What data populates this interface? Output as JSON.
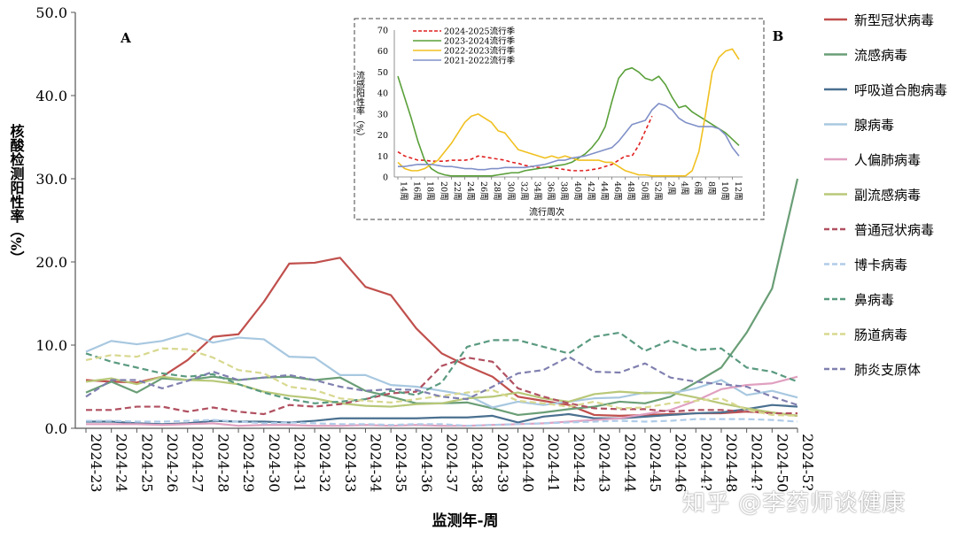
{
  "chart_data": [
    {
      "type": "line",
      "panel_label": "A",
      "xlabel": "监测年-周",
      "ylabel": "核酸检测阳性率（%）",
      "ylim": [
        0,
        50
      ],
      "yticks": [
        "0.0",
        "10.0",
        "20.0",
        "30.0",
        "40.0",
        "50.0"
      ],
      "ytick_values": [
        0,
        10,
        20,
        30,
        40,
        50
      ],
      "grid": false,
      "legend_position": "right",
      "categories": [
        "2024-23",
        "2024-24",
        "2024-25",
        "2024-26",
        "2024-27",
        "2024-28",
        "2024-29",
        "2024-30",
        "2024-31",
        "2024-32",
        "2024-33",
        "2024-34",
        "2024-35",
        "2024-36",
        "2024-37",
        "2024-38",
        "2024-39",
        "2024-40",
        "2024-41",
        "2024-42",
        "2024-43",
        "2024-44",
        "2024-45",
        "2024-46",
        "2024-47",
        "2024-48",
        "2024-49",
        "2024-50",
        "2024-51"
      ],
      "tick_labels": [
        "2024-23",
        "2024-24",
        "2024-25",
        "2024-26",
        "2024-27",
        "2024-28",
        "2024-29",
        "2024-30",
        "2024-31",
        "2024-32",
        "2024-33",
        "2024-34",
        "2024-35",
        "2024-36",
        "2024-37",
        "2024-38",
        "2024-39",
        "2024-40",
        "2024-41",
        "2024-42",
        "2024-43",
        "2024-44",
        "2024-45",
        "2024-46",
        "2024-4?",
        "2024-48",
        "2024-4?",
        "2024-50",
        "2024-5?"
      ],
      "series": [
        {
          "name": "新型冠状病毒",
          "color": "#c0504d",
          "dash": "solid",
          "values": [
            5.8,
            5.6,
            5.5,
            6.2,
            8.2,
            11.0,
            11.3,
            15.2,
            19.8,
            19.9,
            20.5,
            17.0,
            16.0,
            12.0,
            9.0,
            7.5,
            6.2,
            3.8,
            3.3,
            2.8,
            1.6,
            1.5,
            1.6,
            1.7,
            1.8,
            1.8,
            2.0,
            1.9,
            1.5
          ]
        },
        {
          "name": "流感病毒",
          "color": "#6a9e76",
          "dash": "solid",
          "values": [
            4.3,
            5.6,
            4.3,
            6.0,
            5.8,
            6.2,
            5.8,
            6.1,
            6.2,
            5.8,
            6.1,
            4.5,
            3.8,
            3.0,
            3.0,
            3.1,
            2.4,
            1.6,
            1.9,
            2.3,
            2.6,
            3.2,
            3.0,
            3.8,
            5.5,
            7.3,
            11.5,
            16.8,
            30.0
          ]
        },
        {
          "name": "呼吸道合胞病毒",
          "color": "#4a7090",
          "dash": "solid",
          "values": [
            0.8,
            0.8,
            0.6,
            0.5,
            0.6,
            0.9,
            0.8,
            0.8,
            0.7,
            0.9,
            1.2,
            1.2,
            1.2,
            1.2,
            1.3,
            1.3,
            1.5,
            0.7,
            1.4,
            1.7,
            1.2,
            1.2,
            1.4,
            1.6,
            1.8,
            1.9,
            2.3,
            2.8,
            2.6
          ]
        },
        {
          "name": "腺病毒",
          "color": "#a8c8e0",
          "dash": "solid",
          "values": [
            9.2,
            10.5,
            10.1,
            10.5,
            11.4,
            10.3,
            10.9,
            10.7,
            8.6,
            8.5,
            6.4,
            6.4,
            5.2,
            5.0,
            4.5,
            4.0,
            2.5,
            3.2,
            2.8,
            3.2,
            3.6,
            3.7,
            4.3,
            4.2,
            4.8,
            5.8,
            4.0,
            4.5,
            3.7
          ]
        },
        {
          "name": "人偏肺病毒",
          "color": "#e0a0c0",
          "dash": "solid",
          "values": [
            0.5,
            0.5,
            0.5,
            0.4,
            0.5,
            0.6,
            0.3,
            0.4,
            0.4,
            0.3,
            0.3,
            0.4,
            0.3,
            0.4,
            0.3,
            0.3,
            0.4,
            0.5,
            0.6,
            0.8,
            1.0,
            1.2,
            1.7,
            2.2,
            3.3,
            4.7,
            5.2,
            5.4,
            6.2
          ]
        },
        {
          "name": "副流感病毒",
          "color": "#b8c878",
          "dash": "solid",
          "values": [
            5.6,
            6.0,
            5.3,
            6.2,
            5.8,
            5.7,
            5.3,
            4.4,
            3.9,
            3.6,
            3.0,
            2.7,
            2.6,
            2.9,
            3.0,
            3.6,
            3.8,
            4.3,
            3.6,
            3.2,
            4.1,
            4.4,
            4.2,
            4.3,
            3.7,
            3.0,
            2.4,
            1.9,
            1.5
          ]
        },
        {
          "name": "普通冠状病毒",
          "color": "#b05060",
          "dash": "dashed",
          "values": [
            2.2,
            2.2,
            2.6,
            2.6,
            2.0,
            2.5,
            2.0,
            1.7,
            2.8,
            2.6,
            2.9,
            3.5,
            4.2,
            4.4,
            7.5,
            8.5,
            8.0,
            4.8,
            3.8,
            3.0,
            2.4,
            2.3,
            2.3,
            2.0,
            2.2,
            2.2,
            2.0,
            1.8,
            1.8
          ]
        },
        {
          "name": "博卡病毒",
          "color": "#b0cce8",
          "dash": "dashed",
          "values": [
            0.9,
            0.9,
            0.8,
            0.8,
            0.9,
            1.0,
            0.8,
            0.6,
            0.7,
            0.6,
            0.5,
            0.5,
            0.4,
            0.5,
            0.5,
            0.3,
            0.4,
            0.5,
            0.6,
            0.7,
            0.8,
            0.9,
            0.8,
            0.9,
            1.1,
            1.1,
            1.1,
            1.0,
            0.8
          ]
        },
        {
          "name": "鼻病毒",
          "color": "#5a9a80",
          "dash": "dashed",
          "values": [
            9.0,
            8.0,
            7.3,
            6.6,
            6.2,
            6.5,
            5.3,
            4.3,
            3.5,
            3.0,
            3.2,
            3.5,
            4.5,
            4.0,
            5.5,
            9.8,
            10.6,
            10.6,
            9.8,
            9.0,
            11.0,
            11.5,
            9.3,
            10.6,
            9.4,
            9.6,
            7.3,
            6.8,
            5.6
          ]
        },
        {
          "name": "肠道病毒",
          "color": "#d8d890",
          "dash": "dashed",
          "values": [
            8.2,
            8.8,
            8.6,
            9.6,
            9.5,
            8.5,
            7.0,
            6.6,
            5.0,
            4.6,
            3.6,
            3.3,
            3.1,
            3.5,
            3.9,
            4.3,
            4.6,
            3.3,
            3.0,
            2.6,
            3.2,
            2.4,
            2.5,
            3.0,
            3.3,
            3.6,
            2.2,
            1.6,
            1.5
          ]
        },
        {
          "name": "肺炎支原体",
          "color": "#8080b0",
          "dash": "dashed",
          "values": [
            3.8,
            5.8,
            5.8,
            4.8,
            5.7,
            6.8,
            5.8,
            6.1,
            6.4,
            5.8,
            5.0,
            4.5,
            4.7,
            4.6,
            3.8,
            3.5,
            5.0,
            6.6,
            7.0,
            8.6,
            6.8,
            6.7,
            7.8,
            6.1,
            5.6,
            5.3,
            5.0,
            3.8,
            2.8
          ]
        }
      ]
    },
    {
      "type": "line",
      "panel_label": "B",
      "xlabel": "流行周次",
      "ylabel": "流感阳性率（%）",
      "ylim": [
        0,
        70
      ],
      "yticks": [
        "0",
        "10",
        "20",
        "30",
        "40",
        "50",
        "60",
        "70"
      ],
      "ytick_values": [
        0,
        10,
        20,
        30,
        40,
        50,
        60,
        70
      ],
      "grid": false,
      "legend_position": "top-left",
      "categories": [
        "14周",
        "15周",
        "16周",
        "17周",
        "18周",
        "19周",
        "20周",
        "21周",
        "22周",
        "23周",
        "24周",
        "25周",
        "26周",
        "27周",
        "28周",
        "29周",
        "30周",
        "31周",
        "32周",
        "33周",
        "34周",
        "35周",
        "36周",
        "37周",
        "38周",
        "39周",
        "40周",
        "41周",
        "42周",
        "43周",
        "44周",
        "45周",
        "46周",
        "47周",
        "48周",
        "49周",
        "50周",
        "51周",
        "52周",
        "1周",
        "2周",
        "3周",
        "4周",
        "5周",
        "6周",
        "7周",
        "8周",
        "9周",
        "10周",
        "11周",
        "12周",
        "13周"
      ],
      "tick_labels": [
        "14周",
        "16周",
        "18周",
        "20周",
        "22周",
        "24周",
        "26周",
        "28周",
        "30周",
        "32周",
        "34周",
        "36周",
        "38周",
        "40周",
        "42周",
        "44周",
        "46周",
        "48周",
        "50周",
        "52周",
        "2周",
        "4周",
        "6周",
        "8周",
        "10周",
        "12周"
      ],
      "series": [
        {
          "name": "2024-2025流行季",
          "color": "#e02020",
          "dash": "dashed",
          "values": [
            12,
            10,
            9,
            8,
            8,
            7.5,
            7.5,
            7.5,
            8,
            8,
            8,
            8.5,
            10,
            9.5,
            9,
            8.5,
            8,
            7,
            6.5,
            5.5,
            5,
            4.5,
            4.5,
            4.5,
            4,
            3.5,
            3,
            3,
            3,
            3.5,
            4,
            5,
            6,
            8,
            10,
            10,
            15,
            22,
            29,
            null,
            null,
            null,
            null,
            null,
            null,
            null,
            null,
            null,
            null,
            null,
            null,
            null
          ]
        },
        {
          "name": "2023-2024流行季",
          "color": "#5aa03a",
          "dash": "solid",
          "values": [
            48,
            38,
            28,
            17,
            8,
            4,
            2,
            1,
            0.5,
            0.5,
            0.5,
            0.5,
            0.5,
            0.5,
            0.5,
            1,
            1.5,
            2,
            2,
            3,
            3.5,
            4,
            4.5,
            5,
            5.5,
            6,
            7,
            9,
            11,
            14,
            18,
            24,
            36,
            47,
            51,
            52,
            50,
            47,
            46,
            48,
            44,
            38,
            33,
            34,
            31,
            29,
            27,
            25,
            23,
            21,
            18,
            15
          ]
        },
        {
          "name": "2022-2023流行季",
          "color": "#f0c020",
          "dash": "solid",
          "values": [
            7,
            4,
            3,
            3,
            4,
            6,
            8,
            12,
            16,
            21,
            26,
            29,
            30,
            28,
            26,
            22,
            21,
            17,
            13,
            12,
            11,
            10,
            9,
            10,
            9,
            10,
            9,
            8,
            8,
            8,
            8,
            7,
            7,
            5,
            3,
            2,
            1,
            1,
            0.5,
            0.5,
            0.5,
            0.5,
            0.5,
            0.5,
            3,
            12,
            30,
            50,
            57,
            60,
            61,
            56
          ]
        },
        {
          "name": "2021-2022流行季",
          "color": "#8090c8",
          "dash": "solid",
          "values": [
            5,
            5,
            5.5,
            6,
            6,
            6,
            5.5,
            5,
            5,
            4.5,
            4,
            4,
            3.5,
            3.5,
            4,
            4,
            4.5,
            4.5,
            4.5,
            4.5,
            5,
            5.5,
            6,
            7,
            8,
            8,
            9,
            9.5,
            10,
            11,
            12,
            13,
            14,
            17,
            21,
            25,
            26,
            27,
            32,
            35,
            34,
            32,
            28,
            26,
            25,
            24,
            24,
            24,
            23,
            20,
            14,
            10
          ]
        }
      ]
    }
  ],
  "watermark": "知乎 @李药师谈健康"
}
